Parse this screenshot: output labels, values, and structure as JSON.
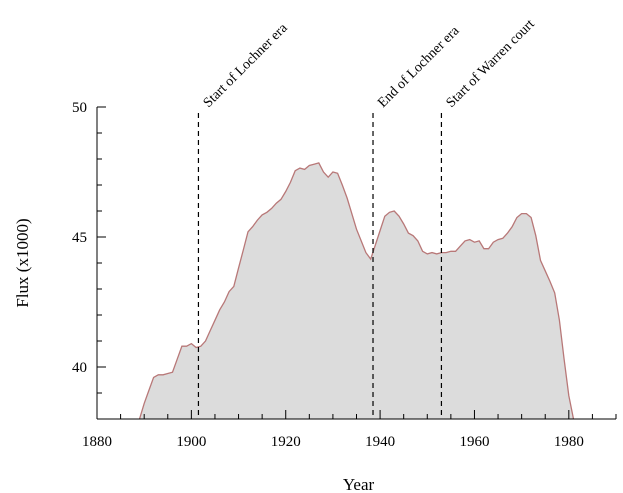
{
  "chart_data": {
    "type": "area",
    "title": "",
    "xlabel": "Year",
    "ylabel": "Flux  (x1000)",
    "xlim": [
      1880,
      1990
    ],
    "ylim": [
      38,
      50
    ],
    "xticks": [
      1880,
      1900,
      1920,
      1940,
      1960,
      1980
    ],
    "xtick_labels": [
      "1880",
      "1900",
      "1920",
      "1940",
      "1960",
      "1980"
    ],
    "yticks": [
      40,
      45,
      50
    ],
    "ytick_labels": [
      "40",
      "45",
      "50"
    ],
    "grid": false,
    "fill_color": "#dcdcdc",
    "line_color": "#b87878",
    "series": [
      {
        "x": [
          1889,
          1890,
          1891,
          1892,
          1893,
          1894,
          1895,
          1896,
          1897,
          1898,
          1899,
          1900,
          1901,
          1902,
          1903,
          1904,
          1905,
          1906,
          1907,
          1908,
          1909,
          1910,
          1911,
          1912,
          1913,
          1914,
          1915,
          1916,
          1917,
          1918,
          1919,
          1920,
          1921,
          1922,
          1923,
          1924,
          1925,
          1926,
          1927,
          1928,
          1929,
          1930,
          1931,
          1932,
          1933,
          1934,
          1935,
          1936,
          1937,
          1938,
          1939,
          1940,
          1941,
          1942,
          1943,
          1944,
          1945,
          1946,
          1947,
          1948,
          1949,
          1950,
          1951,
          1952,
          1953,
          1954,
          1955,
          1956,
          1957,
          1958,
          1959,
          1960,
          1961,
          1962,
          1963,
          1964,
          1965,
          1966,
          1967,
          1968,
          1969,
          1970,
          1971,
          1972,
          1973,
          1974,
          1975,
          1976,
          1977,
          1978,
          1979,
          1980,
          1981
        ],
        "y": [
          38.0,
          38.6,
          39.1,
          39.6,
          39.7,
          39.7,
          39.75,
          39.8,
          40.3,
          40.8,
          40.8,
          40.9,
          40.75,
          40.8,
          41.0,
          41.4,
          41.8,
          42.2,
          42.5,
          42.9,
          43.1,
          43.8,
          44.5,
          45.2,
          45.4,
          45.65,
          45.85,
          45.95,
          46.1,
          46.3,
          46.45,
          46.75,
          47.1,
          47.55,
          47.65,
          47.6,
          47.75,
          47.8,
          47.85,
          47.5,
          47.3,
          47.5,
          47.45,
          47.0,
          46.5,
          45.9,
          45.3,
          44.85,
          44.4,
          44.15,
          44.7,
          45.25,
          45.8,
          45.95,
          46.0,
          45.8,
          45.5,
          45.15,
          45.05,
          44.85,
          44.45,
          44.35,
          44.4,
          44.35,
          44.4,
          44.4,
          44.45,
          44.45,
          44.65,
          44.85,
          44.9,
          44.8,
          44.85,
          44.55,
          44.55,
          44.8,
          44.9,
          44.95,
          45.15,
          45.4,
          45.75,
          45.9,
          45.9,
          45.75,
          45.05,
          44.1,
          43.7,
          43.3,
          42.85,
          41.8,
          40.3,
          38.9,
          38.0
        ]
      }
    ],
    "annotations": [
      {
        "x": 1901.5,
        "text": "Start of Lochner era"
      },
      {
        "x": 1938.5,
        "text": "End of Lochner era"
      },
      {
        "x": 1953,
        "text": "Start of Warren court"
      }
    ]
  }
}
